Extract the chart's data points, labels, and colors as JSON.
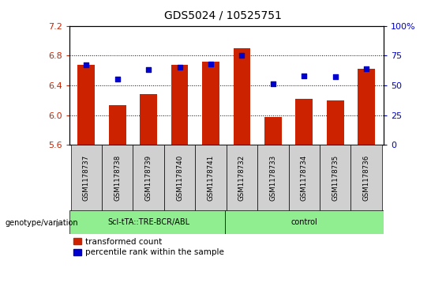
{
  "title": "GDS5024 / 10525751",
  "samples": [
    "GSM1178737",
    "GSM1178738",
    "GSM1178739",
    "GSM1178740",
    "GSM1178741",
    "GSM1178732",
    "GSM1178733",
    "GSM1178734",
    "GSM1178735",
    "GSM1178736"
  ],
  "group1_label": "Scl-tTA::TRE-BCR/ABL",
  "group2_label": "control",
  "transformed_count": [
    6.68,
    6.13,
    6.28,
    6.68,
    6.72,
    6.9,
    5.97,
    6.22,
    6.2,
    6.62
  ],
  "percentile_rank": [
    67,
    55,
    63,
    65,
    68,
    75,
    51,
    58,
    57,
    64
  ],
  "ylim_left": [
    5.6,
    7.2
  ],
  "ylim_right": [
    0,
    100
  ],
  "yticks_left": [
    5.6,
    6.0,
    6.4,
    6.8,
    7.2
  ],
  "yticks_right": [
    0,
    25,
    50,
    75,
    100
  ],
  "bar_color": "#cc2200",
  "dot_color": "#0000cc",
  "bg_color_xticklabel": "#d0d0d0",
  "bg_color_group": "#90ee90",
  "title_fontsize": 10,
  "legend_label_bar": "transformed count",
  "legend_label_dot": "percentile rank within the sample",
  "ylabel_left_color": "#cc2200",
  "ylabel_right_color": "#0000cc"
}
